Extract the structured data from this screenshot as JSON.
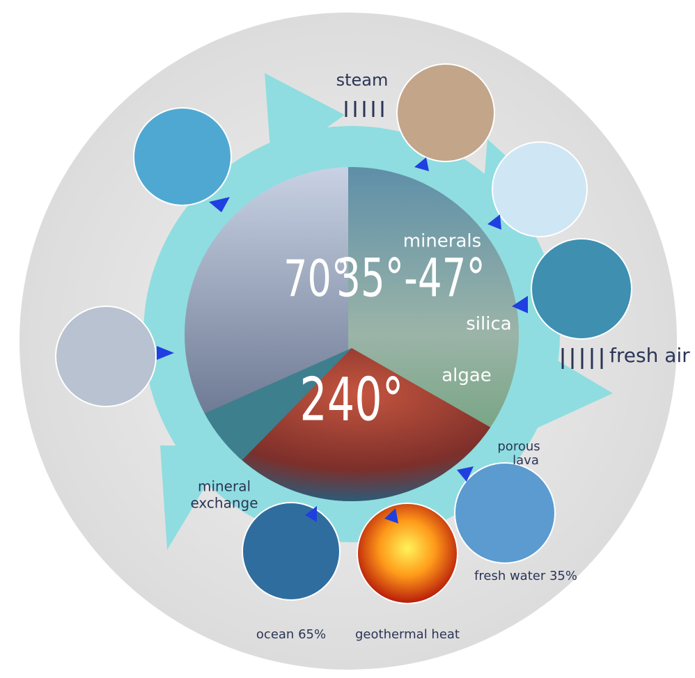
{
  "labels": {
    "steam": "steam",
    "fresh_air": "fresh air",
    "minerals": "minerals",
    "silica": "silica",
    "algae": "algae",
    "temp_left": "70°",
    "temp_right": "35°-47°",
    "temp_bottom": "240°",
    "porous_lava": [
      "porous",
      "lava"
    ],
    "mineral_exchange": [
      "mineral",
      "exchange"
    ],
    "ocean": "ocean 65%",
    "geothermal_heat": "geothermal heat",
    "fresh_water": "fresh water 35%"
  }
}
